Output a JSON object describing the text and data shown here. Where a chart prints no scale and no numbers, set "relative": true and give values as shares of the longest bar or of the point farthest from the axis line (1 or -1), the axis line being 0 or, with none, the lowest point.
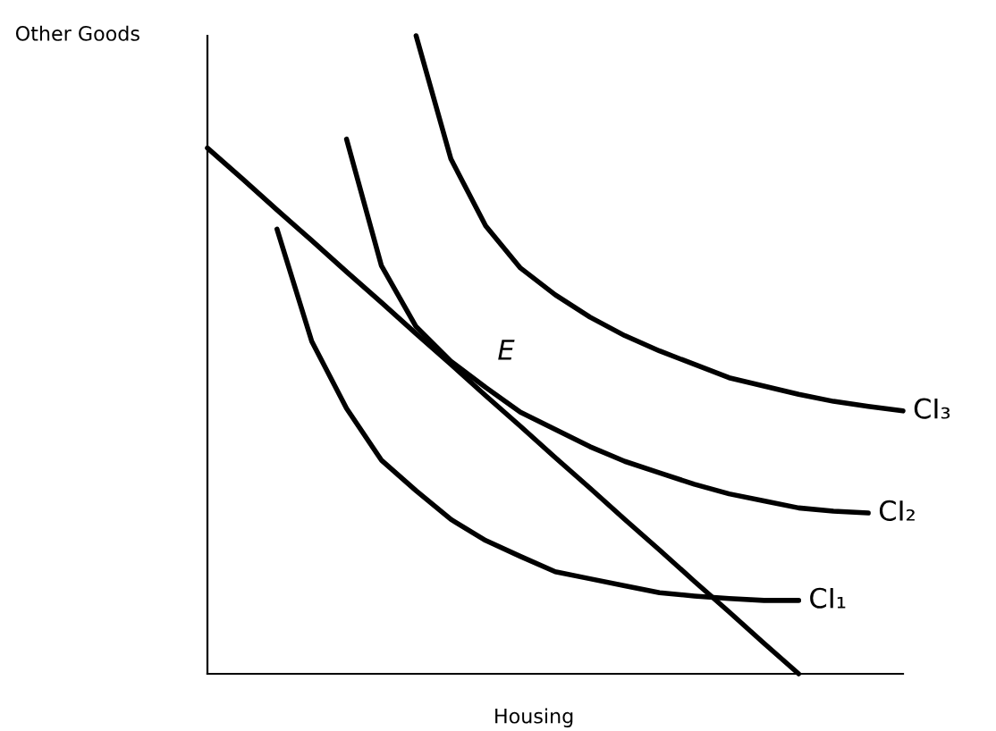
{
  "chart_data": {
    "type": "line",
    "relative": true,
    "xlabel": "Housing",
    "ylabel": "Other Goods",
    "marker": "none",
    "line_style": "solid",
    "categories": [
      null,
      null,
      null,
      null,
      null,
      null,
      null,
      null,
      null,
      null,
      null,
      null,
      null,
      null,
      null,
      null,
      null,
      null,
      null,
      null,
      null
    ],
    "series": [
      {
        "name": "CI₃",
        "color": "#000000",
        "values": [
          null,
          null,
          null,
          null,
          null,
          null,
          1.0,
          0.807,
          0.702,
          0.636,
          0.594,
          0.559,
          0.53,
          0.506,
          0.485,
          0.464,
          0.451,
          0.438,
          0.427,
          0.419,
          0.412
        ]
      },
      {
        "name": "CI₂",
        "color": "#000000",
        "values": [
          null,
          null,
          null,
          null,
          0.838,
          0.64,
          0.544,
          0.49,
          0.449,
          0.41,
          0.383,
          0.356,
          0.333,
          0.315,
          0.297,
          0.282,
          0.271,
          0.26,
          0.255,
          0.252,
          null
        ]
      },
      {
        "name": "CI₁",
        "color": "#000000",
        "values": [
          null,
          null,
          0.697,
          0.521,
          0.416,
          0.335,
          0.287,
          0.242,
          0.209,
          0.184,
          0.16,
          0.149,
          0.138,
          0.127,
          0.122,
          0.118,
          0.115,
          0.115,
          null,
          null,
          null
        ]
      },
      {
        "color": "#000000",
        "values": [
          0.824,
          0.776,
          0.727,
          0.679,
          0.63,
          0.582,
          0.533,
          0.485,
          0.436,
          0.388,
          0.339,
          0.291,
          0.242,
          0.194,
          0.145,
          0.097,
          0.048,
          0.0,
          null,
          null,
          null
        ]
      }
    ],
    "annotations": [
      "E"
    ]
  }
}
